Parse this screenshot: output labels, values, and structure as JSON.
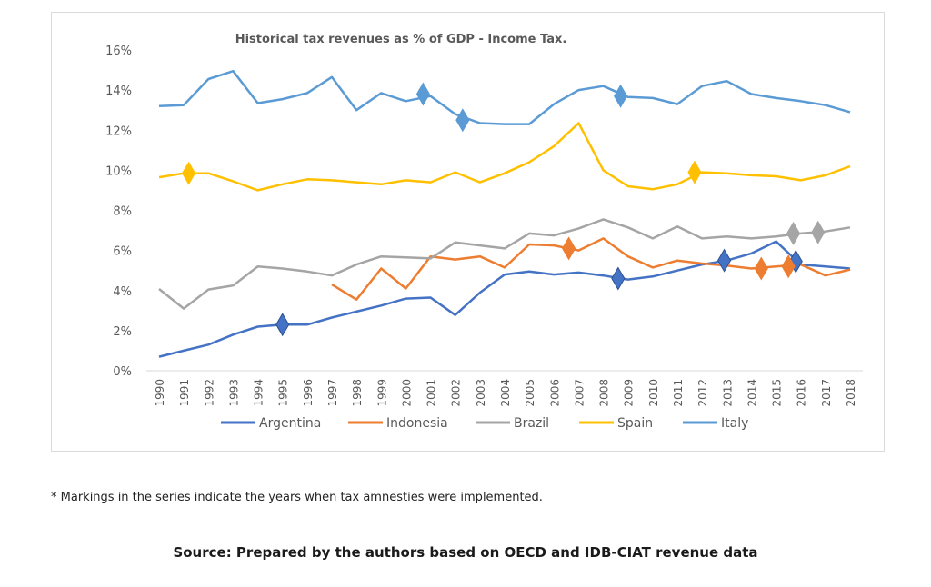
{
  "chart_data": {
    "type": "line",
    "title": "Historical tax revenues as % of GDP - Income Tax.",
    "xlabel": "",
    "ylabel": "",
    "ylim": [
      0,
      16
    ],
    "yticks": [
      0,
      2,
      4,
      6,
      8,
      10,
      12,
      14,
      16
    ],
    "ytick_labels": [
      "0%",
      "2%",
      "4%",
      "6%",
      "8%",
      "10%",
      "12%",
      "14%",
      "16%"
    ],
    "grid": false,
    "legend_position": "bottom",
    "x": [
      1990,
      1991,
      1992,
      1993,
      1994,
      1995,
      1996,
      1997,
      1998,
      1999,
      2000,
      2001,
      2002,
      2003,
      2004,
      2005,
      2006,
      2007,
      2008,
      2009,
      2010,
      2011,
      2012,
      2013,
      2014,
      2015,
      2016,
      2017,
      2018
    ],
    "xtick_labels": [
      "1990",
      "1991",
      "1992",
      "1993",
      "1994",
      "1995",
      "1996",
      "1997",
      "1998",
      "1999",
      "2000",
      "2001",
      "2002",
      "2003",
      "2004",
      "2005",
      "2006",
      "2007",
      "2008",
      "2009",
      "2010",
      "2011",
      "2012",
      "2013",
      "2014",
      "2015",
      "2016",
      "2017",
      "2018"
    ],
    "series": [
      {
        "name": "Argentina",
        "color": "#4472c4",
        "values": [
          0.7,
          1.0,
          1.3,
          1.8,
          2.2,
          2.3,
          2.3,
          2.65,
          2.95,
          3.25,
          3.6,
          3.65,
          2.78,
          3.9,
          4.8,
          4.95,
          4.8,
          4.9,
          4.75,
          4.55,
          4.7,
          5.0,
          5.3,
          5.5,
          5.85,
          6.45,
          5.3,
          5.2,
          5.1
        ],
        "markers": [
          {
            "x": 1995,
            "y": 2.3
          },
          {
            "x": 2008.6,
            "y": 4.6
          },
          {
            "x": 2012.9,
            "y": 5.5
          },
          {
            "x": 2015.8,
            "y": 5.45
          }
        ]
      },
      {
        "name": "Indonesia",
        "color": "#ed7d31",
        "values": [
          null,
          null,
          null,
          null,
          null,
          null,
          null,
          4.3,
          3.55,
          5.1,
          4.1,
          5.7,
          5.55,
          5.7,
          5.15,
          6.3,
          6.25,
          6.0,
          6.6,
          5.7,
          5.15,
          5.5,
          5.35,
          5.25,
          5.1,
          5.2,
          5.3,
          4.75,
          5.05
        ],
        "markers": [
          {
            "x": 2006.6,
            "y": 6.1
          },
          {
            "x": 2014.4,
            "y": 5.1
          },
          {
            "x": 2015.5,
            "y": 5.2
          }
        ]
      },
      {
        "name": "Brazil",
        "color": "#a5a5a5",
        "values": [
          4.08,
          3.1,
          4.05,
          4.25,
          5.2,
          5.1,
          4.95,
          4.75,
          5.3,
          5.7,
          5.65,
          5.6,
          6.4,
          6.25,
          6.1,
          6.85,
          6.75,
          7.1,
          7.55,
          7.15,
          6.6,
          7.2,
          6.6,
          6.7,
          6.6,
          6.7,
          6.85,
          6.95,
          7.15
        ],
        "markers": [
          {
            "x": 2015.7,
            "y": 6.85
          },
          {
            "x": 2016.7,
            "y": 6.9
          }
        ]
      },
      {
        "name": "Spain",
        "color": "#ffc000",
        "values": [
          9.65,
          9.85,
          9.85,
          9.45,
          9.0,
          9.3,
          9.55,
          9.5,
          9.4,
          9.3,
          9.5,
          9.4,
          9.9,
          9.4,
          9.85,
          10.4,
          11.2,
          12.35,
          10.0,
          9.2,
          9.05,
          9.3,
          9.9,
          9.85,
          9.75,
          9.7,
          9.5,
          9.75,
          10.2
        ],
        "markers": [
          {
            "x": 1991.2,
            "y": 9.85
          },
          {
            "x": 2011.7,
            "y": 9.9
          }
        ]
      },
      {
        "name": "Italy",
        "color": "#5b9bd5",
        "values": [
          13.2,
          13.25,
          14.55,
          14.95,
          13.35,
          13.55,
          13.85,
          14.65,
          13.0,
          13.85,
          13.45,
          13.7,
          12.8,
          12.35,
          12.3,
          12.3,
          13.3,
          14.0,
          14.2,
          13.65,
          13.6,
          13.3,
          14.2,
          14.45,
          13.8,
          13.6,
          13.45,
          13.25,
          12.9
        ],
        "markers": [
          {
            "x": 2000.7,
            "y": 13.8
          },
          {
            "x": 2002.3,
            "y": 12.5
          },
          {
            "x": 2008.7,
            "y": 13.7
          }
        ]
      }
    ]
  },
  "footnote": "* Markings in the series indicate the years when tax amnesties were implemented.",
  "source": "Source: Prepared by the authors based on OECD and IDB-CIAT revenue data"
}
